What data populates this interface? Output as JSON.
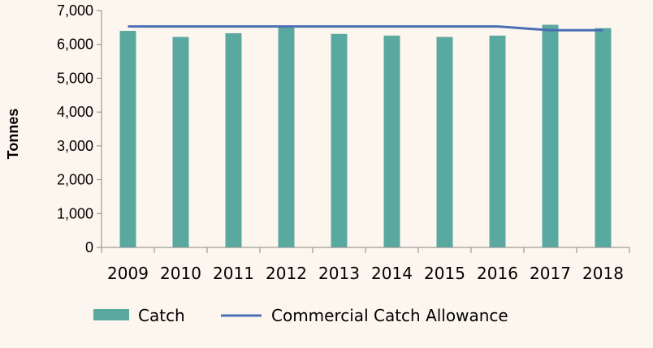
{
  "chart_data": {
    "type": "bar",
    "categories": [
      "2009",
      "2010",
      "2011",
      "2012",
      "2013",
      "2014",
      "2015",
      "2016",
      "2017",
      "2018"
    ],
    "series": [
      {
        "name": "Catch",
        "type": "bar",
        "values": [
          6400,
          6220,
          6330,
          6530,
          6310,
          6260,
          6220,
          6260,
          6580,
          6480
        ],
        "color": "#5aa9a0"
      },
      {
        "name": "Commercial Catch Allowance",
        "type": "line",
        "values": [
          6530,
          6530,
          6530,
          6530,
          6530,
          6530,
          6530,
          6530,
          6420,
          6420
        ],
        "color": "#4a6fb5"
      }
    ],
    "ylabel": "Tonnes",
    "xlabel": "",
    "ylim": [
      0,
      7000
    ],
    "yticks": [
      0,
      1000,
      2000,
      3000,
      4000,
      5000,
      6000,
      7000
    ],
    "ytick_labels": [
      "0",
      "1,000",
      "2,000",
      "3,000",
      "4,000",
      "5,000",
      "6,000",
      "7,000"
    ],
    "grid": false,
    "legend_position": "bottom"
  }
}
